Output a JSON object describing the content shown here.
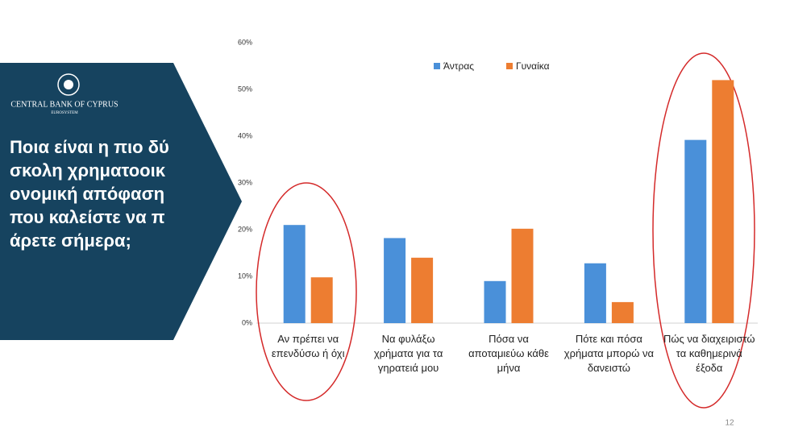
{
  "slide": {
    "logo_title": "CENTRAL BANK OF CYPRUS",
    "logo_subtitle": "EUROSYSTEM",
    "question": "Ποια είναι η πιο δύσκολη χρηματοοικονομική απόφαση που καλείστε να πάρετε σήμερα;",
    "page_number": "12"
  },
  "chart_data": {
    "type": "bar",
    "categories": [
      "Αν πρέπει να επενδύσω ή όχι",
      "Να φυλάξω χρήματα για τα γηρατειά μου",
      "Πόσα να αποταμιεύω κάθε μήνα",
      "Πότε και πόσα χρήματα μπορώ να δανειστώ",
      "Πώς να διαχειριστώ τα καθημερινά έξοδα"
    ],
    "series": [
      {
        "name": "Άντρας",
        "color": "#4a90d9",
        "values": [
          21,
          18.2,
          9,
          12.8,
          39.2
        ]
      },
      {
        "name": "Γυναίκα",
        "color": "#ed7d31",
        "values": [
          9.8,
          14,
          20.2,
          4.5,
          52
        ]
      }
    ],
    "ylim": [
      0,
      60
    ],
    "yticks": [
      {
        "value": 0,
        "label": "0%"
      },
      {
        "value": 10,
        "label": "10%"
      },
      {
        "value": 20,
        "label": "20%"
      },
      {
        "value": 30,
        "label": "30%"
      },
      {
        "value": 40,
        "label": "40%"
      },
      {
        "value": 50,
        "label": "50%"
      },
      {
        "value": 60,
        "label": "60%"
      }
    ],
    "legend": "top"
  }
}
